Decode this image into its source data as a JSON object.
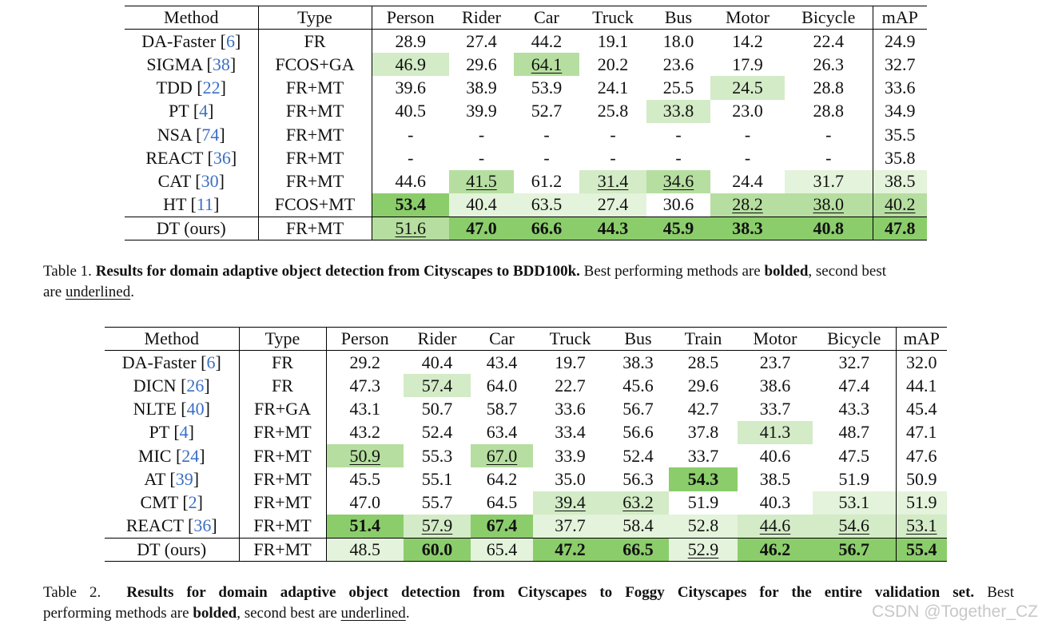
{
  "colors": {
    "best_fill": "#8bcd6b",
    "second_fill": "#b6dea0",
    "third_fill": "#d3ebc6",
    "fourth_fill": "#e4f3db",
    "citation": "#3a6fc4"
  },
  "table1": {
    "columns": [
      "Method",
      "Type",
      "Person",
      "Rider",
      "Car",
      "Truck",
      "Bus",
      "Motor",
      "Bicycle",
      "mAP"
    ],
    "rows": [
      {
        "method": "DA-Faster",
        "cite": "6",
        "type": "FR",
        "values": [
          "28.9",
          "27.4",
          "44.2",
          "19.1",
          "18.0",
          "14.2",
          "22.4",
          "24.9"
        ],
        "shade": [
          0,
          0,
          0,
          0,
          0,
          0,
          0,
          0
        ],
        "mark": [
          "",
          "",
          "",
          "",
          "",
          "",
          "",
          ""
        ]
      },
      {
        "method": "SIGMA",
        "cite": "38",
        "type": "FCOS+GA",
        "values": [
          "46.9",
          "29.6",
          "64.1",
          "20.2",
          "23.6",
          "17.9",
          "26.3",
          "32.7"
        ],
        "shade": [
          3,
          0,
          2,
          0,
          0,
          0,
          0,
          0
        ],
        "mark": [
          "",
          "",
          "u",
          "",
          "",
          "",
          "",
          ""
        ]
      },
      {
        "method": "TDD",
        "cite": "22",
        "type": "FR+MT",
        "values": [
          "39.6",
          "38.9",
          "53.9",
          "24.1",
          "25.5",
          "24.5",
          "28.8",
          "33.6"
        ],
        "shade": [
          0,
          0,
          0,
          0,
          0,
          3,
          0,
          0
        ],
        "mark": [
          "",
          "",
          "",
          "",
          "",
          "",
          "",
          ""
        ]
      },
      {
        "method": "PT",
        "cite": "4",
        "type": "FR+MT",
        "values": [
          "40.5",
          "39.9",
          "52.7",
          "25.8",
          "33.8",
          "23.0",
          "28.8",
          "34.9"
        ],
        "shade": [
          0,
          0,
          0,
          0,
          3,
          0,
          0,
          0
        ],
        "mark": [
          "",
          "",
          "",
          "",
          "",
          "",
          "",
          ""
        ]
      },
      {
        "method": "NSA",
        "cite": "74",
        "type": "FR+MT",
        "values": [
          "-",
          "-",
          "-",
          "-",
          "-",
          "-",
          "-",
          "35.5"
        ],
        "shade": [
          0,
          0,
          0,
          0,
          0,
          0,
          0,
          0
        ],
        "mark": [
          "",
          "",
          "",
          "",
          "",
          "",
          "",
          ""
        ]
      },
      {
        "method": "REACT",
        "cite": "36",
        "type": "FR+MT",
        "values": [
          "-",
          "-",
          "-",
          "-",
          "-",
          "-",
          "-",
          "35.8"
        ],
        "shade": [
          0,
          0,
          0,
          0,
          0,
          0,
          0,
          0
        ],
        "mark": [
          "",
          "",
          "",
          "",
          "",
          "",
          "",
          ""
        ]
      },
      {
        "method": "CAT",
        "cite": "30",
        "type": "FR+MT",
        "values": [
          "44.6",
          "41.5",
          "61.2",
          "31.4",
          "34.6",
          "24.4",
          "31.7",
          "38.5"
        ],
        "shade": [
          0,
          2,
          0,
          3,
          2,
          0,
          4,
          4
        ],
        "mark": [
          "",
          "u",
          "",
          "u",
          "u",
          "",
          "",
          ""
        ]
      },
      {
        "method": "HT",
        "cite": "11",
        "type": "FCOS+MT",
        "values": [
          "53.4",
          "40.4",
          "63.5",
          "27.4",
          "30.6",
          "28.2",
          "38.0",
          "40.2"
        ],
        "shade": [
          1,
          4,
          4,
          4,
          0,
          2,
          2,
          2
        ],
        "mark": [
          "b",
          "",
          "",
          "",
          "",
          "u",
          "u",
          "u"
        ]
      },
      {
        "method": "DT (ours)",
        "cite": "",
        "type": "FR+MT",
        "values": [
          "51.6",
          "47.0",
          "66.6",
          "44.3",
          "45.9",
          "38.3",
          "40.8",
          "47.8"
        ],
        "shade": [
          2,
          1,
          1,
          1,
          1,
          1,
          1,
          1
        ],
        "mark": [
          "u",
          "b",
          "b",
          "b",
          "b",
          "b",
          "b",
          "b"
        ]
      }
    ]
  },
  "caption1": {
    "label": "Table 1.",
    "bold_text": "Results for domain adaptive object detection from Cityscapes to BDD100k.",
    "text_a": "Best performing methods are",
    "bolded": "bolded",
    "text_b": ", second best",
    "text_c": "are",
    "underlined": "underlined",
    "text_d": "."
  },
  "table2": {
    "columns": [
      "Method",
      "Type",
      "Person",
      "Rider",
      "Car",
      "Truck",
      "Bus",
      "Train",
      "Motor",
      "Bicycle",
      "mAP"
    ],
    "rows": [
      {
        "method": "DA-Faster",
        "cite": "6",
        "type": "FR",
        "values": [
          "29.2",
          "40.4",
          "43.4",
          "19.7",
          "38.3",
          "28.5",
          "23.7",
          "32.7",
          "32.0"
        ],
        "shade": [
          0,
          0,
          0,
          0,
          0,
          0,
          0,
          0,
          0
        ],
        "mark": [
          "",
          "",
          "",
          "",
          "",
          "",
          "",
          "",
          ""
        ]
      },
      {
        "method": "DICN",
        "cite": "26",
        "type": "FR",
        "values": [
          "47.3",
          "57.4",
          "64.0",
          "22.7",
          "45.6",
          "29.6",
          "38.6",
          "47.4",
          "44.1"
        ],
        "shade": [
          0,
          3,
          0,
          0,
          0,
          0,
          0,
          0,
          0
        ],
        "mark": [
          "",
          "",
          "",
          "",
          "",
          "",
          "",
          "",
          ""
        ]
      },
      {
        "method": "NLTE",
        "cite": "40",
        "type": "FR+GA",
        "values": [
          "43.1",
          "50.7",
          "58.7",
          "33.6",
          "56.7",
          "42.7",
          "33.7",
          "43.3",
          "45.4"
        ],
        "shade": [
          0,
          0,
          0,
          0,
          0,
          0,
          0,
          0,
          0
        ],
        "mark": [
          "",
          "",
          "",
          "",
          "",
          "",
          "",
          "",
          ""
        ]
      },
      {
        "method": "PT",
        "cite": "4",
        "type": "FR+MT",
        "values": [
          "43.2",
          "52.4",
          "63.4",
          "33.4",
          "56.6",
          "37.8",
          "41.3",
          "48.7",
          "47.1"
        ],
        "shade": [
          0,
          0,
          0,
          0,
          0,
          0,
          3,
          0,
          0
        ],
        "mark": [
          "",
          "",
          "",
          "",
          "",
          "",
          "",
          "",
          ""
        ]
      },
      {
        "method": "MIC",
        "cite": "24",
        "type": "FR+MT",
        "values": [
          "50.9",
          "55.3",
          "67.0",
          "33.9",
          "52.4",
          "33.7",
          "40.6",
          "47.5",
          "47.6"
        ],
        "shade": [
          2,
          0,
          2,
          0,
          0,
          0,
          0,
          0,
          0
        ],
        "mark": [
          "u",
          "",
          "u",
          "",
          "",
          "",
          "",
          "",
          ""
        ]
      },
      {
        "method": "AT",
        "cite": "39",
        "type": "FR+MT",
        "values": [
          "45.5",
          "55.1",
          "64.2",
          "35.0",
          "56.3",
          "54.3",
          "38.5",
          "51.9",
          "50.9"
        ],
        "shade": [
          0,
          0,
          0,
          0,
          0,
          1,
          0,
          0,
          0
        ],
        "mark": [
          "",
          "",
          "",
          "",
          "",
          "b",
          "",
          "",
          ""
        ]
      },
      {
        "method": "CMT",
        "cite": "2",
        "type": "FR+MT",
        "values": [
          "47.0",
          "55.7",
          "64.5",
          "39.4",
          "63.2",
          "51.9",
          "40.3",
          "53.1",
          "51.9"
        ],
        "shade": [
          0,
          0,
          0,
          3,
          3,
          0,
          0,
          4,
          4
        ],
        "mark": [
          "",
          "",
          "",
          "u",
          "u",
          "",
          "",
          "",
          ""
        ]
      },
      {
        "method": "REACT",
        "cite": "36",
        "type": "FR+MT",
        "values": [
          "51.4",
          "57.9",
          "67.4",
          "37.7",
          "58.4",
          "52.8",
          "44.6",
          "54.6",
          "53.1"
        ],
        "shade": [
          1,
          3,
          1,
          4,
          4,
          4,
          3,
          3,
          3
        ],
        "mark": [
          "b",
          "u",
          "b",
          "",
          "",
          "",
          "u",
          "u",
          "u"
        ]
      },
      {
        "method": "DT (ours)",
        "cite": "",
        "type": "FR+MT",
        "values": [
          "48.5",
          "60.0",
          "65.4",
          "47.2",
          "66.5",
          "52.9",
          "46.2",
          "56.7",
          "55.4"
        ],
        "shade": [
          4,
          1,
          4,
          1,
          1,
          4,
          1,
          1,
          1
        ],
        "mark": [
          "",
          "b",
          "",
          "b",
          "b",
          "u",
          "b",
          "b",
          "b"
        ]
      }
    ]
  },
  "caption2": {
    "label": "Table 2.",
    "bold_text": "Results for domain adaptive object detection from Cityscapes to Foggy Cityscapes for the entire validation set.",
    "text_a": "Best",
    "text_b": "performing methods are",
    "bolded": "bolded",
    "text_c": ", second best are",
    "underlined": "underlined",
    "text_d": "."
  },
  "watermark": "CSDN @Together_CZ"
}
